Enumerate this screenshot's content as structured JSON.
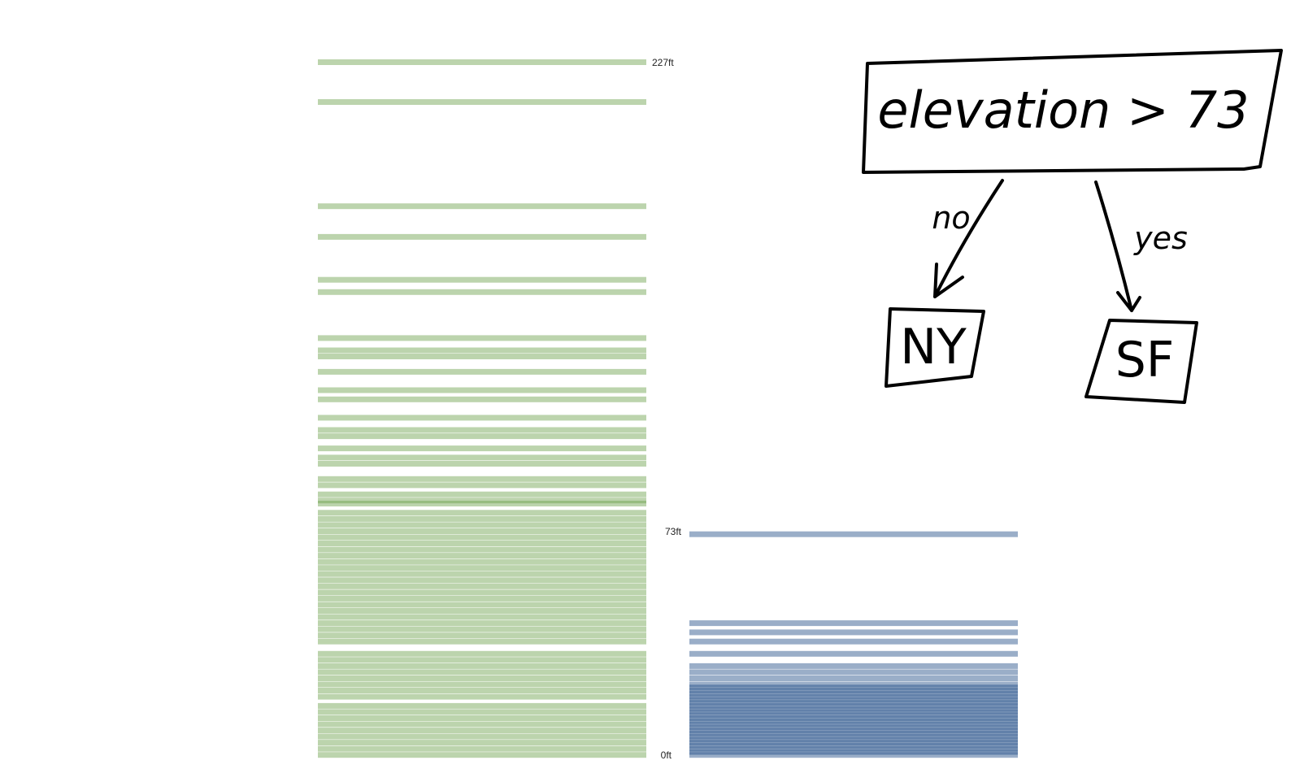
{
  "chart_data": {
    "type": "strip",
    "unit": "ft",
    "ylim": [
      0,
      227
    ],
    "tick_labels": {
      "top": "227ft",
      "split": "73ft",
      "bottom": "0ft"
    },
    "series": [
      {
        "key": "ny",
        "color": "#6aa04a",
        "values": [
          227,
          214,
          180,
          170,
          156,
          152,
          137,
          133,
          131,
          126,
          120,
          117,
          111,
          107,
          105,
          101,
          98,
          96,
          91,
          89,
          86,
          84,
          83,
          80,
          78,
          76,
          74,
          72,
          70,
          68,
          66,
          64,
          62,
          60,
          58,
          56,
          54,
          52,
          50,
          48,
          46,
          44,
          42,
          40,
          38,
          34,
          32,
          30,
          28,
          26,
          24,
          22,
          20,
          17,
          15,
          13,
          11,
          9,
          7,
          5,
          3,
          1
        ]
      },
      {
        "key": "sf",
        "color": "#1f4b86",
        "values": [
          73,
          44,
          41,
          38,
          34,
          30,
          28,
          26,
          24,
          23,
          22,
          21,
          20,
          19,
          18,
          17,
          16,
          15,
          14,
          13,
          12,
          11,
          10,
          9,
          8,
          7,
          6,
          5,
          4,
          3,
          2,
          1
        ]
      }
    ]
  },
  "tree": {
    "root": "elevation > 73",
    "edge_no": "no",
    "edge_yes": "yes",
    "leaf_no": "NY",
    "leaf_yes": "SF"
  }
}
